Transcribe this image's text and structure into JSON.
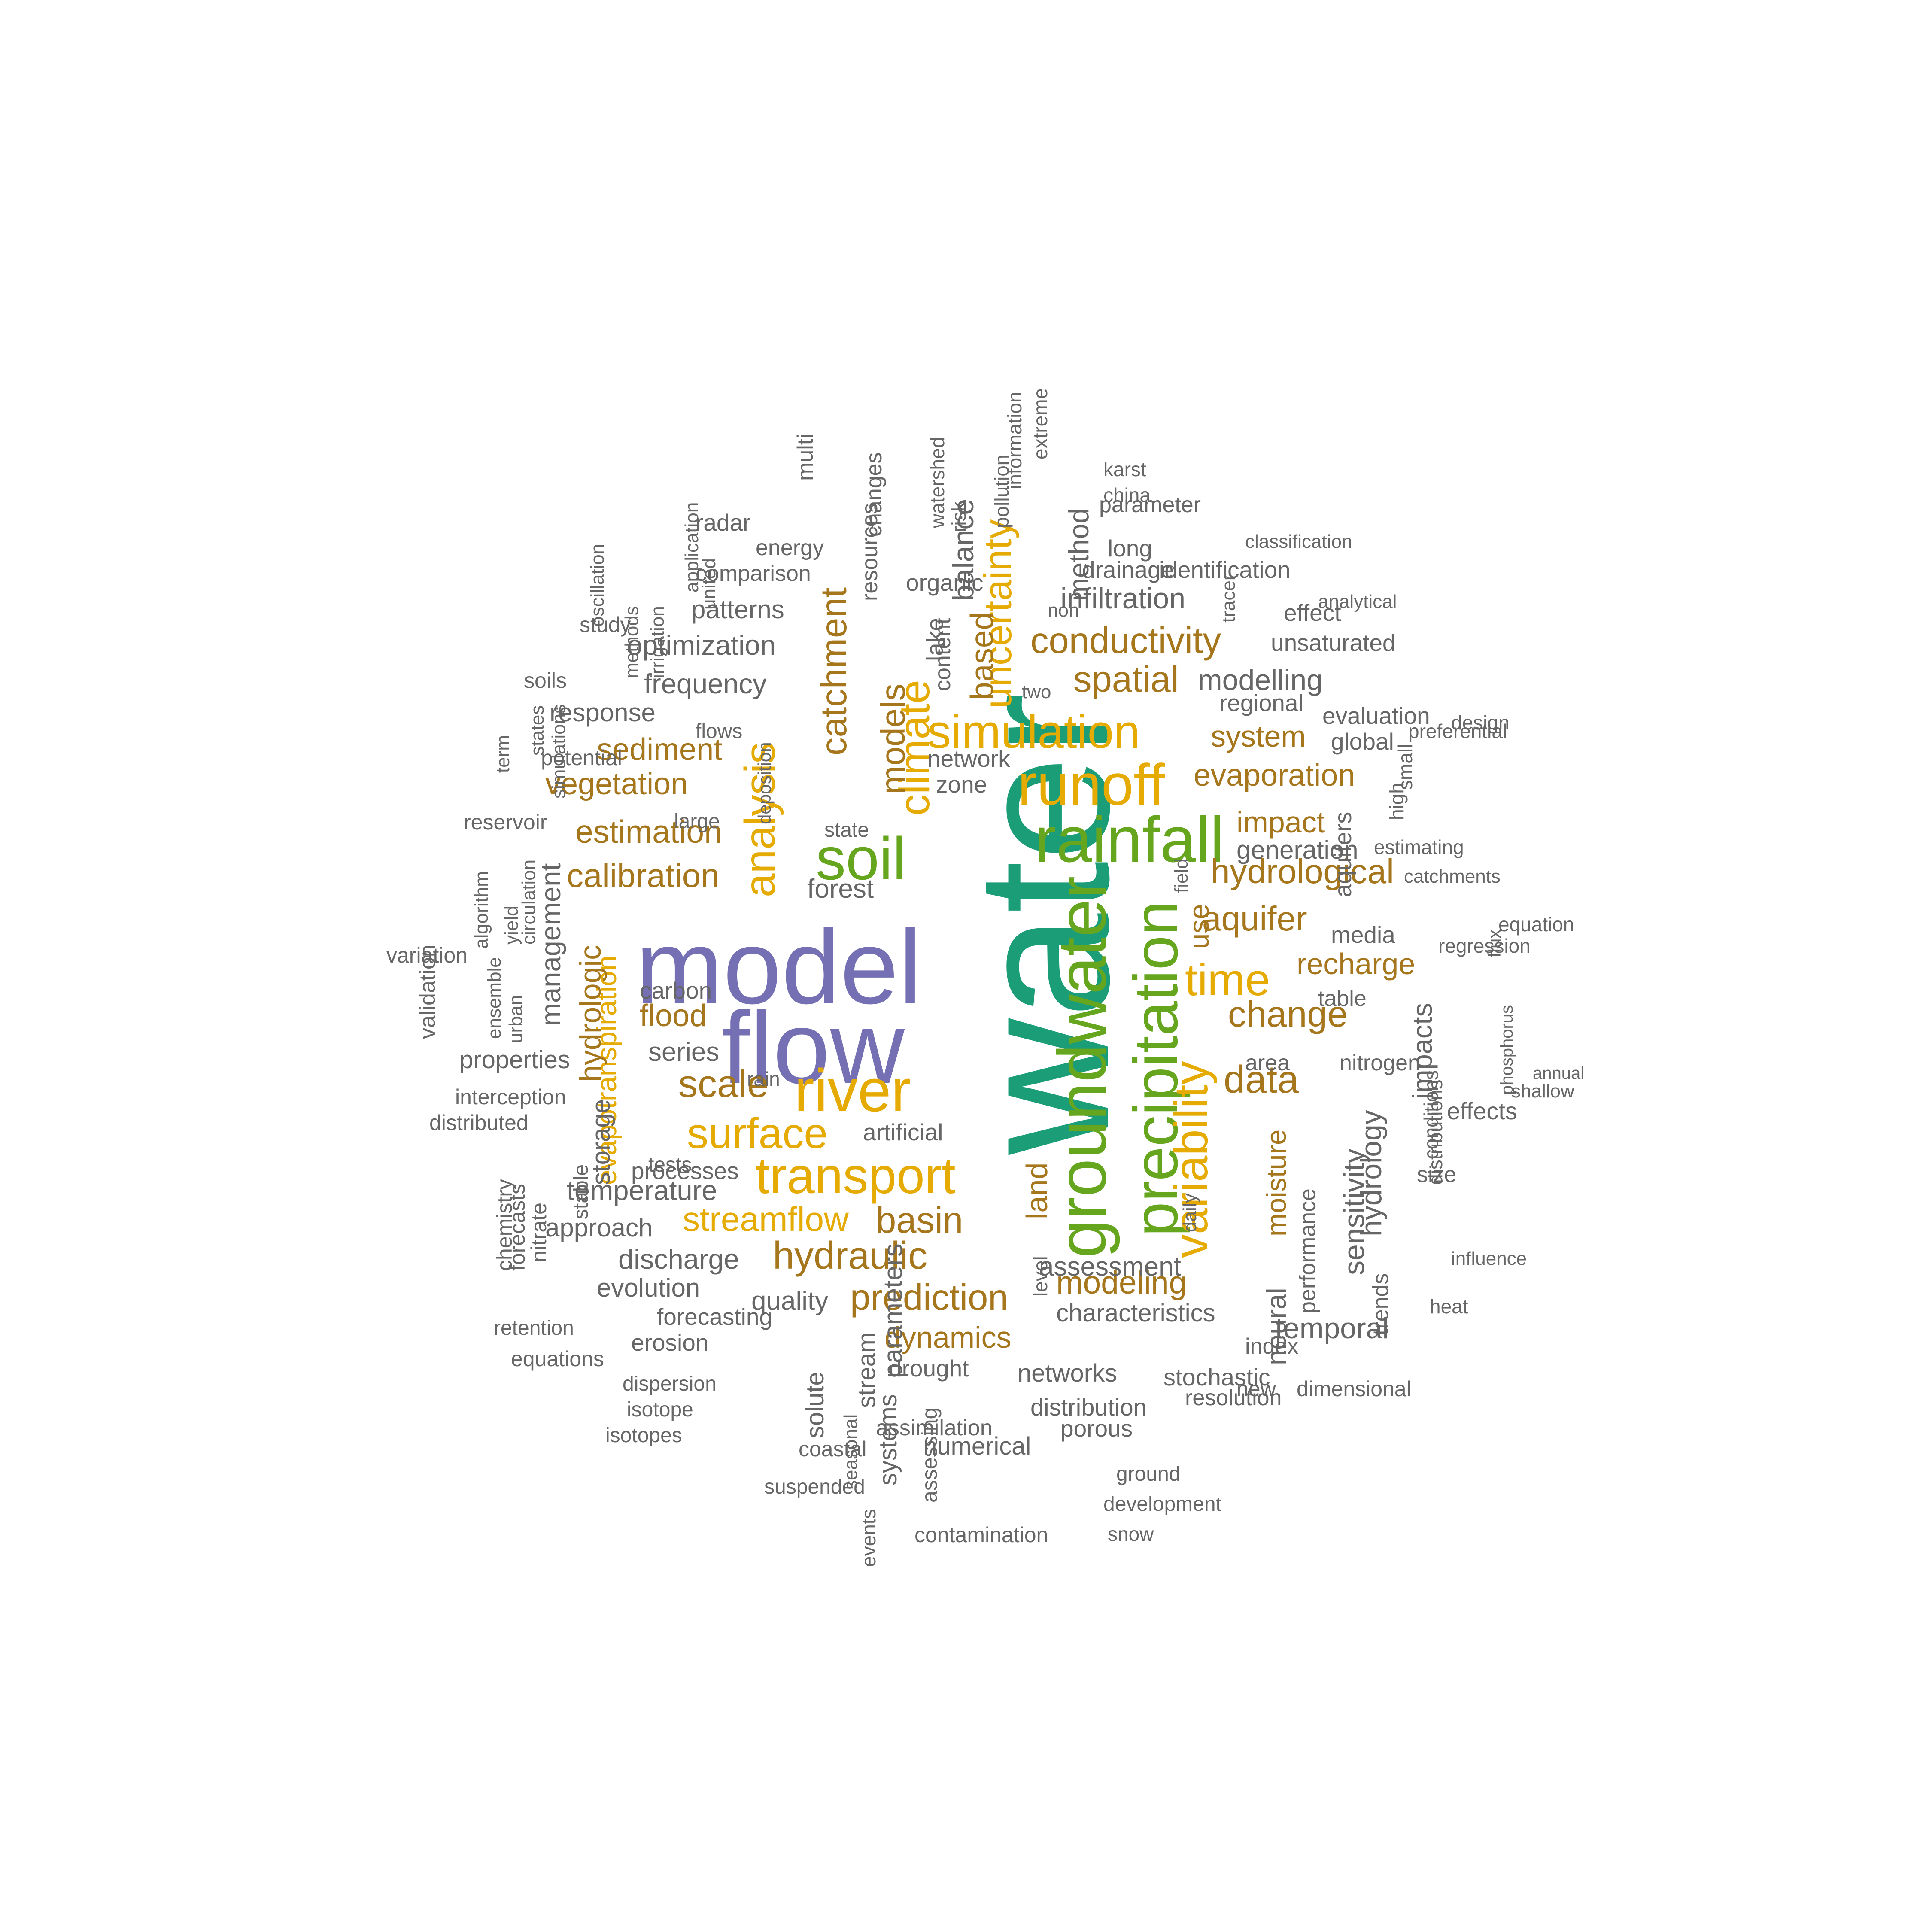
{
  "colors": {
    "tier1": "#1b9e77",
    "tier2": "#7570b3",
    "tier3": "#66a61e",
    "tier4": "#e6ab02",
    "tier5": "#a6761d",
    "tier6": "#666666"
  },
  "words": [
    {
      "text": "water",
      "tier": 1,
      "rotated": true
    },
    {
      "text": "model",
      "tier": 2,
      "rotated": false
    },
    {
      "text": "flow",
      "tier": 2,
      "rotated": false
    },
    {
      "text": "groundwater",
      "tier": 3,
      "rotated": true
    },
    {
      "text": "rainfall",
      "tier": 3,
      "rotated": false
    },
    {
      "text": "soil",
      "tier": 3,
      "rotated": false
    },
    {
      "text": "precipitation",
      "tier": 3,
      "rotated": true
    },
    {
      "text": "runoff",
      "tier": 4,
      "rotated": false
    },
    {
      "text": "river",
      "tier": 4,
      "rotated": false
    },
    {
      "text": "transport",
      "tier": 4,
      "rotated": false
    },
    {
      "text": "simulation",
      "tier": 4,
      "rotated": false
    },
    {
      "text": "analysis",
      "tier": 4,
      "rotated": true
    },
    {
      "text": "climate",
      "tier": 4,
      "rotated": true
    },
    {
      "text": "variability",
      "tier": 4,
      "rotated": true
    },
    {
      "text": "time",
      "tier": 4,
      "rotated": false
    },
    {
      "text": "surface",
      "tier": 4,
      "rotated": false
    },
    {
      "text": "streamflow",
      "tier": 4,
      "rotated": false
    },
    {
      "text": "uncertainty",
      "tier": 4,
      "rotated": true
    },
    {
      "text": "evapotranspiration",
      "tier": 4,
      "rotated": true
    },
    {
      "text": "conductivity",
      "tier": 5,
      "rotated": false
    },
    {
      "text": "spatial",
      "tier": 5,
      "rotated": false
    },
    {
      "text": "catchment",
      "tier": 5,
      "rotated": true
    },
    {
      "text": "models",
      "tier": 5,
      "rotated": true
    },
    {
      "text": "based",
      "tier": 5,
      "rotated": true
    },
    {
      "text": "sediment",
      "tier": 5,
      "rotated": false
    },
    {
      "text": "vegetation",
      "tier": 5,
      "rotated": false
    },
    {
      "text": "estimation",
      "tier": 5,
      "rotated": false
    },
    {
      "text": "calibration",
      "tier": 5,
      "rotated": false
    },
    {
      "text": "evaporation",
      "tier": 5,
      "rotated": false
    },
    {
      "text": "system",
      "tier": 5,
      "rotated": false
    },
    {
      "text": "impact",
      "tier": 5,
      "rotated": false
    },
    {
      "text": "hydrological",
      "tier": 5,
      "rotated": false
    },
    {
      "text": "aquifer",
      "tier": 5,
      "rotated": false
    },
    {
      "text": "recharge",
      "tier": 5,
      "rotated": false
    },
    {
      "text": "change",
      "tier": 5,
      "rotated": false
    },
    {
      "text": "data",
      "tier": 5,
      "rotated": false
    },
    {
      "text": "flood",
      "tier": 5,
      "rotated": false
    },
    {
      "text": "scale",
      "tier": 5,
      "rotated": false
    },
    {
      "text": "hydrologic",
      "tier": 5,
      "rotated": true
    },
    {
      "text": "basin",
      "tier": 5,
      "rotated": false
    },
    {
      "text": "hydraulic",
      "tier": 5,
      "rotated": false
    },
    {
      "text": "prediction",
      "tier": 5,
      "rotated": false
    },
    {
      "text": "modeling",
      "tier": 5,
      "rotated": false
    },
    {
      "text": "dynamics",
      "tier": 5,
      "rotated": false
    },
    {
      "text": "land",
      "tier": 5,
      "rotated": true
    },
    {
      "text": "use",
      "tier": 5,
      "rotated": true
    },
    {
      "text": "moisture",
      "tier": 5,
      "rotated": true
    },
    {
      "text": "method",
      "tier": 6,
      "rotated": true
    },
    {
      "text": "infiltration",
      "tier": 6,
      "rotated": false
    },
    {
      "text": "modelling",
      "tier": 6,
      "rotated": false
    },
    {
      "text": "optimization",
      "tier": 6,
      "rotated": false
    },
    {
      "text": "frequency",
      "tier": 6,
      "rotated": false
    },
    {
      "text": "patterns",
      "tier": 6,
      "rotated": false
    },
    {
      "text": "response",
      "tier": 6,
      "rotated": false
    },
    {
      "text": "balance",
      "tier": 6,
      "rotated": true
    },
    {
      "text": "management",
      "tier": 6,
      "rotated": true
    },
    {
      "text": "generation",
      "tier": 6,
      "rotated": false
    },
    {
      "text": "forest",
      "tier": 6,
      "rotated": false
    },
    {
      "text": "carbon",
      "tier": 6,
      "rotated": false
    },
    {
      "text": "series",
      "tier": 6,
      "rotated": false
    },
    {
      "text": "properties",
      "tier": 6,
      "rotated": false
    },
    {
      "text": "storage",
      "tier": 6,
      "rotated": true
    },
    {
      "text": "temperature",
      "tier": 6,
      "rotated": false
    },
    {
      "text": "approach",
      "tier": 6,
      "rotated": false
    },
    {
      "text": "discharge",
      "tier": 6,
      "rotated": false
    },
    {
      "text": "evolution",
      "tier": 6,
      "rotated": false
    },
    {
      "text": "quality",
      "tier": 6,
      "rotated": false
    },
    {
      "text": "assessment",
      "tier": 6,
      "rotated": false
    },
    {
      "text": "temporal",
      "tier": 6,
      "rotated": false
    },
    {
      "text": "sensitivity",
      "tier": 6,
      "rotated": true
    },
    {
      "text": "hydrology",
      "tier": 6,
      "rotated": true
    },
    {
      "text": "impacts",
      "tier": 6,
      "rotated": true
    },
    {
      "text": "neural",
      "tier": 6,
      "rotated": true
    },
    {
      "text": "stream",
      "tier": 6,
      "rotated": true
    },
    {
      "text": "solute",
      "tier": 6,
      "rotated": true
    },
    {
      "text": "systems",
      "tier": 6,
      "rotated": true
    },
    {
      "text": "parameters",
      "tier": 6,
      "rotated": true
    },
    {
      "text": "networks",
      "tier": 6,
      "rotated": false
    },
    {
      "text": "distribution",
      "tier": 6,
      "rotated": false
    },
    {
      "text": "stochastic",
      "tier": 6,
      "rotated": false
    },
    {
      "text": "characteristics",
      "tier": 6,
      "rotated": false
    },
    {
      "text": "effects",
      "tier": 6,
      "rotated": false
    },
    {
      "text": "aquifers",
      "tier": 6,
      "rotated": true
    },
    {
      "text": "media",
      "tier": 6,
      "rotated": false
    },
    {
      "text": "evaluation",
      "tier": 6,
      "rotated": false
    },
    {
      "text": "global",
      "tier": 6,
      "rotated": false
    },
    {
      "text": "regional",
      "tier": 6,
      "rotated": false
    },
    {
      "text": "network",
      "tier": 6,
      "rotated": false
    },
    {
      "text": "zone",
      "tier": 6,
      "rotated": false
    },
    {
      "text": "radar",
      "tier": 6,
      "rotated": false
    },
    {
      "text": "comparison",
      "tier": 6,
      "rotated": false
    },
    {
      "text": "energy",
      "tier": 6,
      "rotated": false
    },
    {
      "text": "organic",
      "tier": 6,
      "rotated": false
    },
    {
      "text": "changes",
      "tier": 6,
      "rotated": true
    },
    {
      "text": "resources",
      "tier": 6,
      "rotated": true
    },
    {
      "text": "lake",
      "tier": 6,
      "rotated": true
    },
    {
      "text": "content",
      "tier": 6,
      "rotated": true
    },
    {
      "text": "multi",
      "tier": 6,
      "rotated": true
    },
    {
      "text": "long",
      "tier": 6,
      "rotated": false
    },
    {
      "text": "identification",
      "tier": 6,
      "rotated": false
    },
    {
      "text": "parameter",
      "tier": 6,
      "rotated": false
    },
    {
      "text": "drainage",
      "tier": 6,
      "rotated": false
    },
    {
      "text": "effect",
      "tier": 6,
      "rotated": false
    },
    {
      "text": "unsaturated",
      "tier": 6,
      "rotated": false
    },
    {
      "text": "drought",
      "tier": 6,
      "rotated": false
    },
    {
      "text": "porous",
      "tier": 6,
      "rotated": false
    },
    {
      "text": "resolution",
      "tier": 6,
      "rotated": false
    },
    {
      "text": "numerical",
      "tier": 6,
      "rotated": false
    },
    {
      "text": "assimilation",
      "tier": 6,
      "rotated": false
    },
    {
      "text": "forecasting",
      "tier": 6,
      "rotated": false
    },
    {
      "text": "erosion",
      "tier": 6,
      "rotated": false
    },
    {
      "text": "processes",
      "tier": 6,
      "rotated": false
    },
    {
      "text": "artificial",
      "tier": 6,
      "rotated": false
    },
    {
      "text": "area",
      "tier": 6,
      "rotated": false
    },
    {
      "text": "nitrogen",
      "tier": 6,
      "rotated": false
    },
    {
      "text": "table",
      "tier": 6,
      "rotated": false
    },
    {
      "text": "size",
      "tier": 6,
      "rotated": false
    },
    {
      "text": "trends",
      "tier": 6,
      "rotated": true
    },
    {
      "text": "performance",
      "tier": 6,
      "rotated": true
    },
    {
      "text": "index",
      "tier": 6,
      "rotated": false
    },
    {
      "text": "coastal",
      "tier": 6,
      "rotated": false
    },
    {
      "text": "validation",
      "tier": 6,
      "rotated": true
    },
    {
      "text": "distributed",
      "tier": 6,
      "rotated": false
    },
    {
      "text": "interception",
      "tier": 6,
      "rotated": false
    },
    {
      "text": "variation",
      "tier": 6,
      "rotated": false
    },
    {
      "text": "reservoir",
      "tier": 6,
      "rotated": false
    },
    {
      "text": "potential",
      "tier": 6,
      "rotated": false
    },
    {
      "text": "soils",
      "tier": 6,
      "rotated": false
    },
    {
      "text": "study",
      "tier": 6,
      "rotated": false
    },
    {
      "text": "flows",
      "tier": 6,
      "rotated": false
    },
    {
      "text": "large",
      "tier": 6,
      "rotated": false
    },
    {
      "text": "state",
      "tier": 6,
      "rotated": false
    },
    {
      "text": "rain",
      "tier": 6,
      "rotated": false
    },
    {
      "text": "tests",
      "tier": 6,
      "rotated": false
    },
    {
      "text": "stable",
      "tier": 6,
      "rotated": true
    },
    {
      "text": "nitrate",
      "tier": 6,
      "rotated": true
    },
    {
      "text": "chemistry",
      "tier": 6,
      "rotated": true
    },
    {
      "text": "forecasts",
      "tier": 6,
      "rotated": true
    },
    {
      "text": "retention",
      "tier": 6,
      "rotated": false
    },
    {
      "text": "equations",
      "tier": 6,
      "rotated": false
    },
    {
      "text": "dispersion",
      "tier": 6,
      "rotated": false
    },
    {
      "text": "isotope",
      "tier": 6,
      "rotated": false
    },
    {
      "text": "isotopes",
      "tier": 6,
      "rotated": false
    },
    {
      "text": "suspended",
      "tier": 6,
      "rotated": false
    },
    {
      "text": "seasonal",
      "tier": 6,
      "rotated": true
    },
    {
      "text": "events",
      "tier": 6,
      "rotated": true
    },
    {
      "text": "assessing",
      "tier": 6,
      "rotated": true
    },
    {
      "text": "contamination",
      "tier": 6,
      "rotated": false
    },
    {
      "text": "development",
      "tier": 6,
      "rotated": false
    },
    {
      "text": "snow",
      "tier": 6,
      "rotated": false
    },
    {
      "text": "ground",
      "tier": 6,
      "rotated": false
    },
    {
      "text": "dimensional",
      "tier": 6,
      "rotated": false
    },
    {
      "text": "new",
      "tier": 6,
      "rotated": false
    },
    {
      "text": "daily",
      "tier": 6,
      "rotated": true
    },
    {
      "text": "level",
      "tier": 6,
      "rotated": true
    },
    {
      "text": "field",
      "tier": 6,
      "rotated": true
    },
    {
      "text": "two",
      "tier": 6,
      "rotated": false
    },
    {
      "text": "non",
      "tier": 6,
      "rotated": false
    },
    {
      "text": "information",
      "tier": 6,
      "rotated": true
    },
    {
      "text": "extreme",
      "tier": 6,
      "rotated": true
    },
    {
      "text": "karst",
      "tier": 6,
      "rotated": false
    },
    {
      "text": "china",
      "tier": 6,
      "rotated": false
    },
    {
      "text": "classification",
      "tier": 6,
      "rotated": false
    },
    {
      "text": "analytical",
      "tier": 6,
      "rotated": false
    },
    {
      "text": "tracer",
      "tier": 6,
      "rotated": true
    },
    {
      "text": "preferential",
      "tier": 6,
      "rotated": false
    },
    {
      "text": "design",
      "tier": 6,
      "rotated": false
    },
    {
      "text": "small",
      "tier": 6,
      "rotated": true
    },
    {
      "text": "high",
      "tier": 6,
      "rotated": true
    },
    {
      "text": "estimating",
      "tier": 6,
      "rotated": false
    },
    {
      "text": "catchments",
      "tier": 6,
      "rotated": false
    },
    {
      "text": "equation",
      "tier": 6,
      "rotated": false
    },
    {
      "text": "regression",
      "tier": 6,
      "rotated": false
    },
    {
      "text": "flux",
      "tier": 6,
      "rotated": true
    },
    {
      "text": "shallow",
      "tier": 6,
      "rotated": false
    },
    {
      "text": "annual",
      "tier": 6,
      "rotated": false
    },
    {
      "text": "phosphorus",
      "tier": 6,
      "rotated": true
    },
    {
      "text": "conditions",
      "tier": 6,
      "rotated": true
    },
    {
      "text": "distributions",
      "tier": 6,
      "rotated": true
    },
    {
      "text": "influence",
      "tier": 6,
      "rotated": false
    },
    {
      "text": "heat",
      "tier": 6,
      "rotated": false
    },
    {
      "text": "risk",
      "tier": 6,
      "rotated": true
    },
    {
      "text": "pollution",
      "tier": 6,
      "rotated": true
    },
    {
      "text": "watershed",
      "tier": 6,
      "rotated": true
    },
    {
      "text": "application",
      "tier": 6,
      "rotated": true
    },
    {
      "text": "united",
      "tier": 6,
      "rotated": true
    },
    {
      "text": "oscillation",
      "tier": 6,
      "rotated": true
    },
    {
      "text": "methods",
      "tier": 6,
      "rotated": true
    },
    {
      "text": "irrigation",
      "tier": 6,
      "rotated": true
    },
    {
      "text": "states",
      "tier": 6,
      "rotated": true
    },
    {
      "text": "term",
      "tier": 6,
      "rotated": true
    },
    {
      "text": "simulations",
      "tier": 6,
      "rotated": true
    },
    {
      "text": "deposition",
      "tier": 6,
      "rotated": true
    },
    {
      "text": "algorithm",
      "tier": 6,
      "rotated": true
    },
    {
      "text": "yield",
      "tier": 6,
      "rotated": true
    },
    {
      "text": "circulation",
      "tier": 6,
      "rotated": true
    },
    {
      "text": "ensemble",
      "tier": 6,
      "rotated": true
    },
    {
      "text": "urban",
      "tier": 6,
      "rotated": true
    },
    {
      "text": "fluxes",
      "tier": 6,
      "rotated": true
    },
    {
      "text": "cover",
      "tier": 6,
      "rotated": true
    }
  ]
}
